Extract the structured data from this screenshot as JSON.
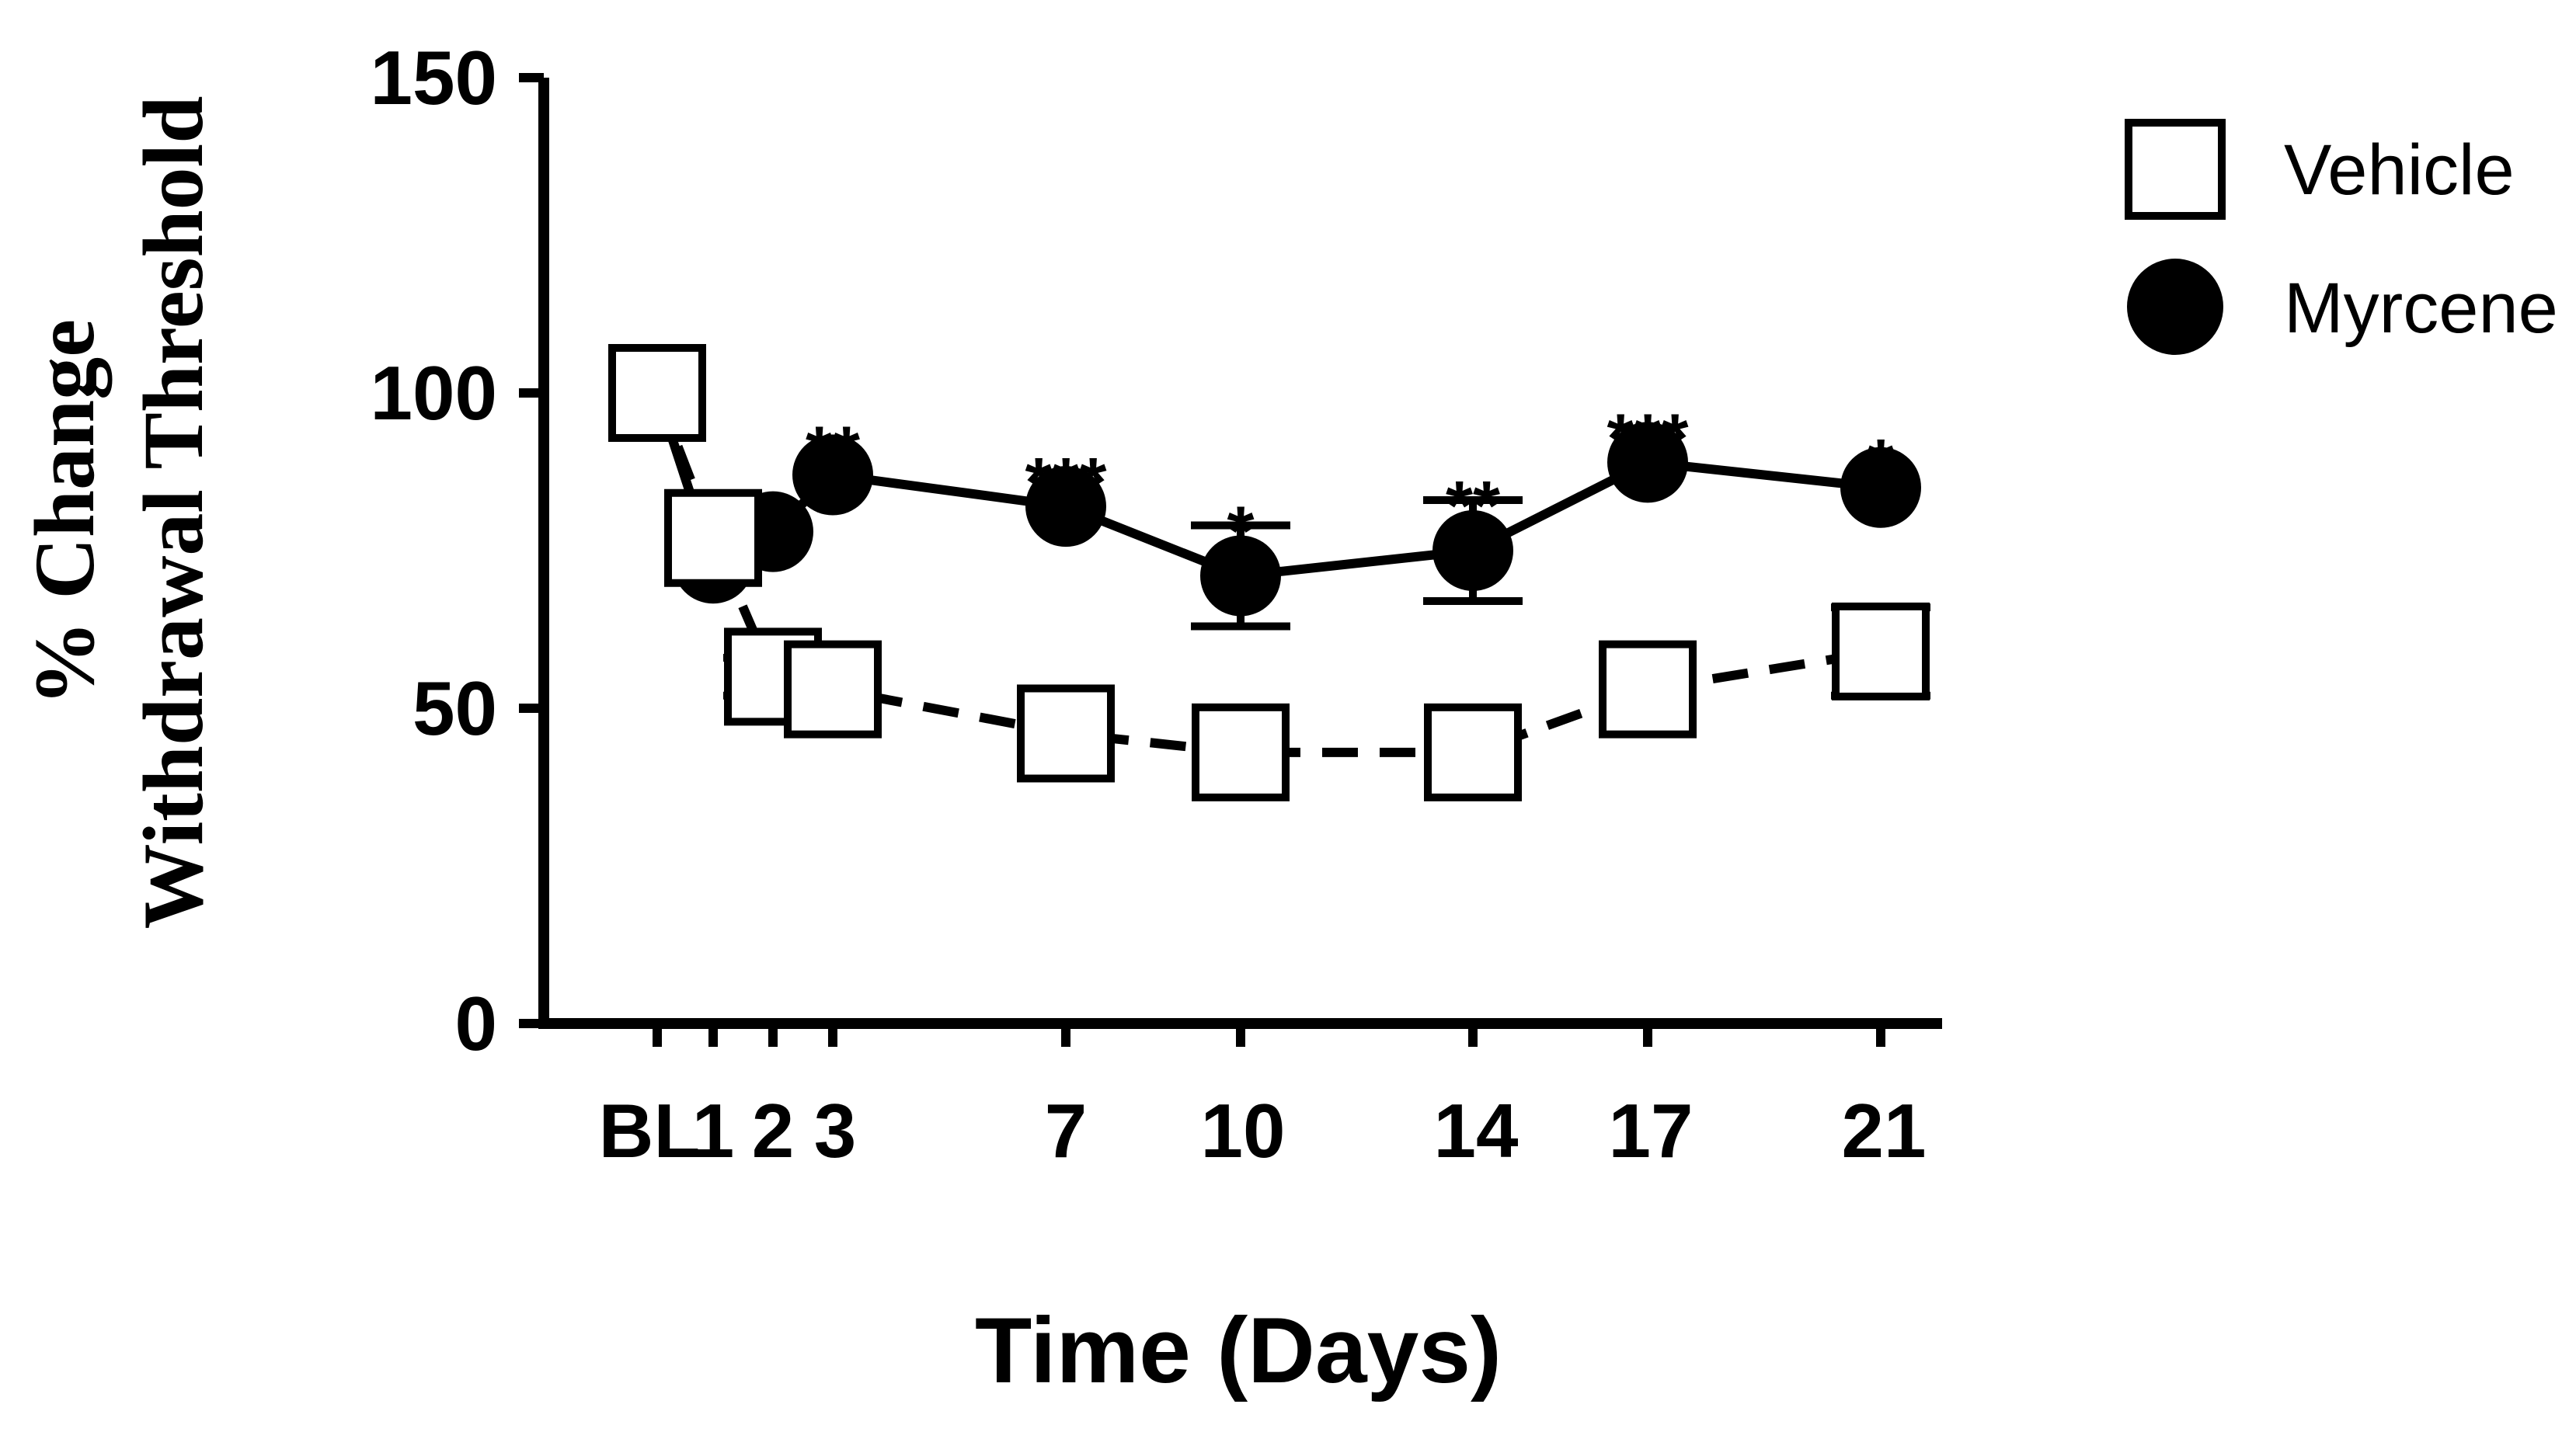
{
  "chart_data": {
    "type": "line",
    "title": "",
    "xlabel": "Time (Days)",
    "ylabel_lines": [
      "% Change",
      "Withdrawal Threshold"
    ],
    "x_tick_labels": [
      "BL",
      "1",
      "2",
      "3",
      "7",
      "10",
      "14",
      "17",
      "21"
    ],
    "y_ticks": [
      "0",
      "50",
      "100",
      "150"
    ],
    "ylim": [
      0,
      150
    ],
    "legend_position": "top-right",
    "series": [
      {
        "name": "Vehicle",
        "marker": "open-square",
        "line_style": "dashed",
        "x": [
          "BL",
          "1",
          "2",
          "3",
          "7",
          "10",
          "14",
          "17",
          "21"
        ],
        "values": [
          100,
          77,
          55,
          53,
          46,
          43,
          43,
          53,
          59
        ],
        "error": [
          0,
          0,
          3,
          0,
          0,
          0,
          0,
          0,
          7
        ]
      },
      {
        "name": "Myrcene",
        "marker": "filled-circle",
        "line_style": "solid",
        "x": [
          "BL",
          "1",
          "2",
          "3",
          "7",
          "10",
          "14",
          "17",
          "21"
        ],
        "values": [
          100,
          73,
          78,
          87,
          82,
          71,
          75,
          89,
          85
        ],
        "error": [
          0,
          0,
          0,
          0,
          0,
          8,
          8,
          0,
          0
        ]
      }
    ],
    "annotations": [
      {
        "x": "3",
        "text": "**"
      },
      {
        "x": "7",
        "text": "***"
      },
      {
        "x": "10",
        "text": "*"
      },
      {
        "x": "14",
        "text": "**"
      },
      {
        "x": "17",
        "text": "***"
      },
      {
        "x": "21",
        "text": "*"
      }
    ],
    "colors": {
      "line": "#000000",
      "marker_fill_open": "#ffffff",
      "marker_fill_closed": "#000000"
    }
  }
}
